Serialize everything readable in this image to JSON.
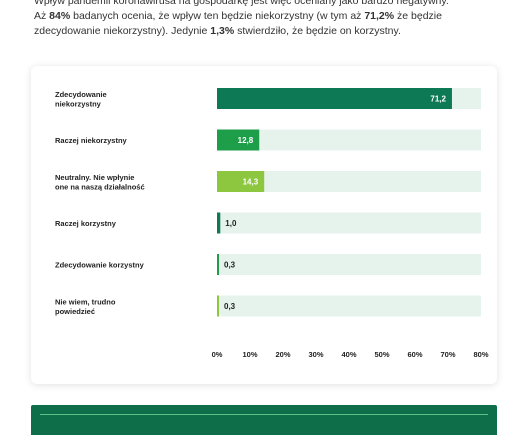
{
  "intro": {
    "line1": "Wpływ pandemii koronawirusa na gospodarkę jest więc oceniany jako bardzo negatywny.",
    "line2_a": "Aż ",
    "line2_b": "84%",
    "line2_c": " badanych ocenia, że wpływ ten będzie niekorzystny (w tym aż ",
    "line2_d": "71,2%",
    "line2_e": " że będzie",
    "line3_a": "zdecydowanie niekorzystny). Jedynie ",
    "line3_b": "1,3%",
    "line3_c": " stwierdziło, że będzie on korzystny."
  },
  "chart_data": {
    "type": "bar",
    "orientation": "horizontal",
    "categories": [
      [
        "Zdecydowanie",
        "niekorzystny"
      ],
      [
        "Raczej niekorzystny"
      ],
      [
        "Neutralny. Nie wpłynie",
        "one na naszą działalność"
      ],
      [
        "Raczej korzystny"
      ],
      [
        "Zdecydowanie korzystny"
      ],
      [
        "Nie wiem, trudno",
        "powiedzieć"
      ]
    ],
    "values": [
      71.2,
      12.8,
      14.3,
      1.0,
      0.3,
      0.3
    ],
    "value_labels": [
      "71,2",
      "12,8",
      "14,3",
      "1,0",
      "0,3",
      "0,3"
    ],
    "bar_colors": [
      "#0e7a55",
      "#1f9e4a",
      "#8dc63f",
      "#0e7a55",
      "#1f9e4a",
      "#8dc63f"
    ],
    "value_label_colors": [
      "#ffffff",
      "#ffffff",
      "#ffffff",
      "#222222",
      "#222222",
      "#222222"
    ],
    "track_color": "#e6f3ec",
    "xlim": [
      0,
      80
    ],
    "xticks": [
      "0%",
      "10%",
      "20%",
      "30%",
      "40%",
      "50%",
      "60%",
      "70%",
      "80%"
    ],
    "grid": false
  }
}
